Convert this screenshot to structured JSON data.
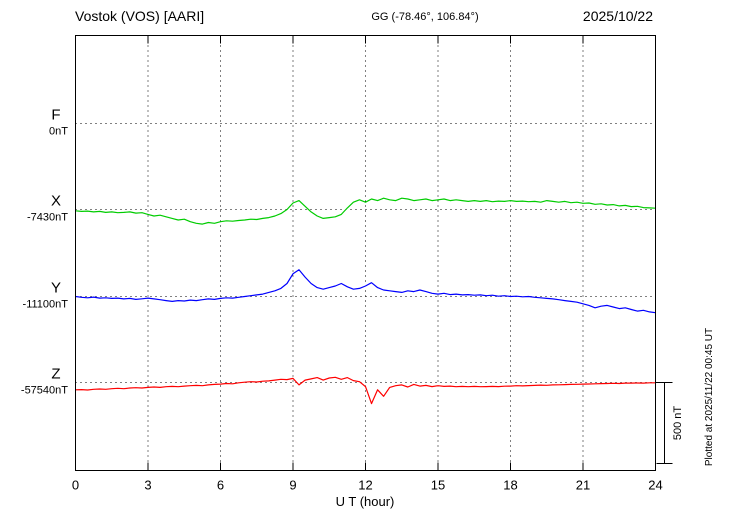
{
  "header": {
    "station": "Vostok (VOS)  [AARI]",
    "coords": "GG (-78.46°, 106.84°)",
    "date": "2025/10/22"
  },
  "right_note": "Plotted at 2025/11/22 00:45 UT",
  "scale_bar": {
    "label": "500 nT",
    "nT": 500
  },
  "chart_data": {
    "type": "line",
    "xlabel": "U T (hour)",
    "x_range": [
      0,
      24
    ],
    "x_ticks": [
      0,
      3,
      6,
      9,
      12,
      15,
      18,
      21,
      24
    ],
    "x_start": 0,
    "x_step": 0.25,
    "scale_bar_nT": 500,
    "components": [
      {
        "name": "F",
        "color": "#ffaa00",
        "baseline_label": "0nT",
        "baseline_nT": 0,
        "offsets_nT": []
      },
      {
        "name": "X",
        "color": "#00cc00",
        "baseline_label": "-7430nT",
        "baseline_nT": -7430,
        "offsets_nT": [
          -8,
          -12,
          -10,
          -15,
          -12,
          -18,
          -15,
          -20,
          -18,
          -15,
          -22,
          -20,
          -30,
          -40,
          -35,
          -45,
          -55,
          -65,
          -60,
          -75,
          -85,
          -90,
          -80,
          -85,
          -75,
          -70,
          -72,
          -68,
          -65,
          -60,
          -62,
          -55,
          -50,
          -40,
          -25,
          0,
          40,
          55,
          20,
          -15,
          -40,
          -55,
          -50,
          -45,
          -30,
          10,
          45,
          60,
          45,
          65,
          55,
          70,
          60,
          55,
          70,
          65,
          55,
          60,
          65,
          55,
          60,
          65,
          55,
          60,
          55,
          50,
          55,
          50,
          55,
          48,
          52,
          50,
          55,
          50,
          52,
          48,
          50,
          45,
          55,
          50,
          45,
          50,
          42,
          45,
          38,
          40,
          32,
          35,
          28,
          30,
          22,
          25,
          18,
          20,
          12,
          10,
          8
        ]
      },
      {
        "name": "Y",
        "color": "#0000ff",
        "baseline_label": "-11100nT",
        "baseline_nT": -11100,
        "offsets_nT": [
          0,
          -5,
          -8,
          -4,
          -10,
          -8,
          -12,
          -10,
          -15,
          -12,
          -18,
          -14,
          -10,
          -15,
          -20,
          -25,
          -30,
          -25,
          -28,
          -22,
          -25,
          -20,
          -15,
          -18,
          -12,
          -8,
          -10,
          -5,
          0,
          5,
          10,
          15,
          25,
          35,
          50,
          80,
          140,
          165,
          120,
          80,
          55,
          45,
          55,
          65,
          80,
          60,
          45,
          50,
          65,
          85,
          55,
          40,
          35,
          30,
          25,
          35,
          30,
          40,
          30,
          20,
          15,
          20,
          12,
          15,
          10,
          12,
          8,
          10,
          5,
          8,
          2,
          5,
          0,
          2,
          -2,
          0,
          -5,
          -8,
          -12,
          -15,
          -20,
          -25,
          -30,
          -35,
          -45,
          -55,
          -70,
          -60,
          -55,
          -65,
          -75,
          -70,
          -80,
          -90,
          -85,
          -95,
          -100
        ]
      },
      {
        "name": "Z",
        "color": "#ff0000",
        "baseline_label": "-57540nT",
        "baseline_nT": -57540,
        "offsets_nT": [
          -45,
          -44,
          -46,
          -42,
          -40,
          -42,
          -38,
          -36,
          -38,
          -34,
          -32,
          -34,
          -30,
          -28,
          -30,
          -26,
          -24,
          -26,
          -22,
          -20,
          -18,
          -20,
          -15,
          -12,
          -10,
          -6,
          -8,
          -2,
          2,
          5,
          3,
          8,
          10,
          15,
          20,
          18,
          25,
          -15,
          15,
          22,
          30,
          15,
          28,
          32,
          20,
          30,
          12,
          5,
          -25,
          -130,
          -45,
          -85,
          -30,
          -20,
          -15,
          -28,
          -12,
          -22,
          -18,
          -25,
          -20,
          -24,
          -22,
          -26,
          -24,
          -26,
          -24,
          -26,
          -25,
          -24,
          -25,
          -23,
          -22,
          -20,
          -21,
          -19,
          -18,
          -16,
          -17,
          -15,
          -14,
          -13,
          -12,
          -11,
          -10,
          -9,
          -8,
          -7,
          -6,
          -5,
          -6,
          -4,
          -4,
          -3,
          -4,
          -2,
          -2
        ]
      }
    ]
  }
}
